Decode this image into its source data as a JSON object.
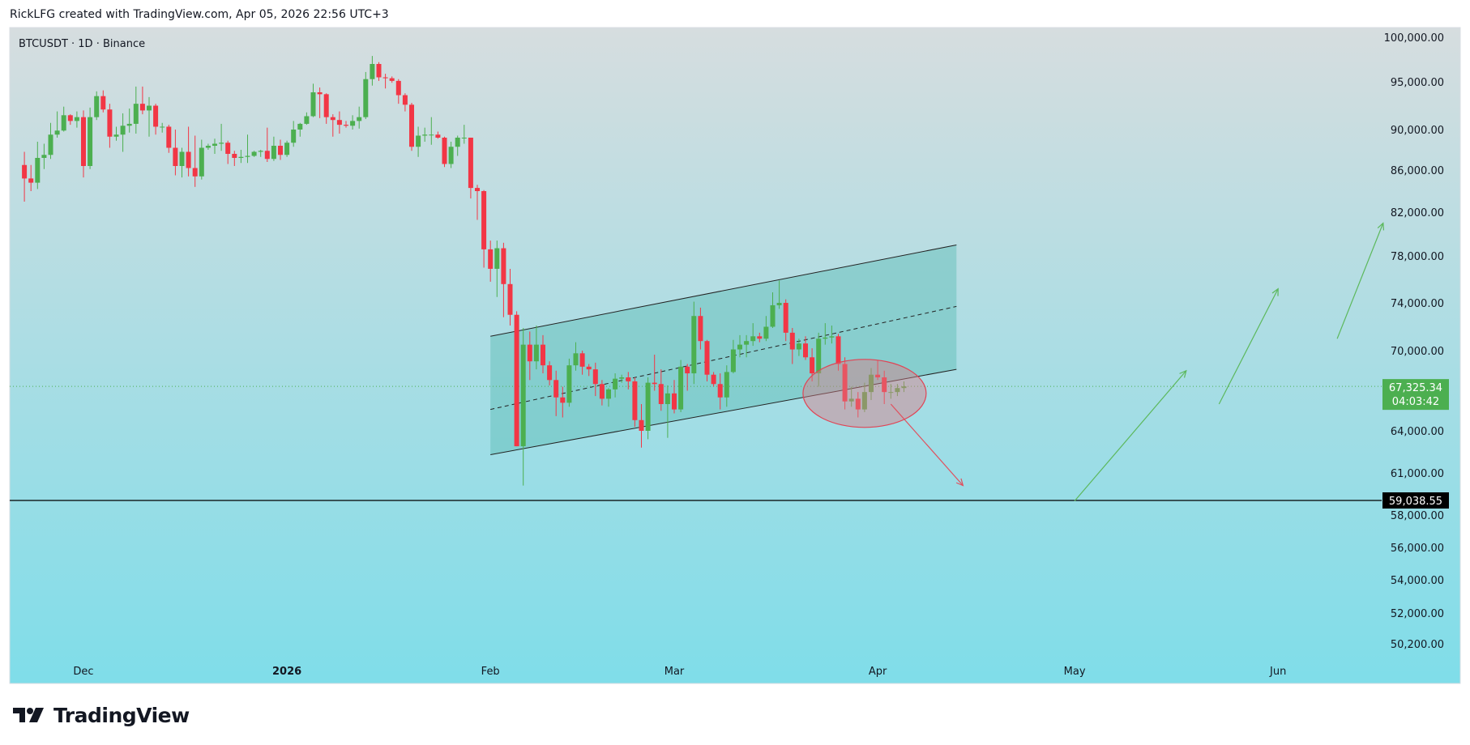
{
  "credit": "RickLFG created with TradingView.com, Apr 05, 2026 22:56 UTC+3",
  "brand": {
    "name": "TradingView"
  },
  "colors": {
    "bg_top": "#d6dddf",
    "bg_bottom": "#7fdde9",
    "up": "#4caf50",
    "down": "#f23645",
    "channel_fill": "#5bbdb4",
    "price_tag": "#4caf50",
    "level_tag": "#000000"
  },
  "chart_data": {
    "type": "candlestick",
    "title": "BTCUSDT · 1D · Binance",
    "symbol": "BTCUSDT",
    "interval": "1D",
    "exchange": "Binance",
    "y_ticks": [
      "100,000.00",
      "95,000.00",
      "90,000.00",
      "86,000.00",
      "82,000.00",
      "78,000.00",
      "74,000.00",
      "70,000.00",
      "64,000.00",
      "61,000.00",
      "58,000.00",
      "56,000.00",
      "54,000.00",
      "52,000.00",
      "50,200.00"
    ],
    "x_ticks": [
      {
        "label": "Dec",
        "date": "2025-12-01",
        "bold": false
      },
      {
        "label": "2026",
        "date": "2026-01-01",
        "bold": true
      },
      {
        "label": "Feb",
        "date": "2026-02-01",
        "bold": false
      },
      {
        "label": "Mar",
        "date": "2026-03-01",
        "bold": false
      },
      {
        "label": "Apr",
        "date": "2026-04-01",
        "bold": false
      },
      {
        "label": "May",
        "date": "2026-05-01",
        "bold": false
      },
      {
        "label": "Jun",
        "date": "2026-06-01",
        "bold": false
      }
    ],
    "last_price": {
      "value": "67,325.34",
      "countdown": "04:03:42"
    },
    "horizontal_level": {
      "value": "59,038.55"
    },
    "channel": {
      "upper": [
        {
          "date": "2026-02-01",
          "price": 71200
        },
        {
          "date": "2026-04-13",
          "price": 79000
        }
      ],
      "middle": [
        {
          "date": "2026-02-01",
          "price": 65600
        },
        {
          "date": "2026-04-13",
          "price": 73700
        }
      ],
      "lower": [
        {
          "date": "2026-02-01",
          "price": 62300
        },
        {
          "date": "2026-04-13",
          "price": 68600
        }
      ]
    },
    "ellipse": {
      "center_date": "2026-03-30",
      "center_price": 66800
    },
    "arrows": [
      {
        "color": "red",
        "from": {
          "date": "2026-04-03",
          "price": 66000
        },
        "to": {
          "date": "2026-04-14",
          "price": 60100
        }
      },
      {
        "color": "green",
        "from": {
          "date": "2026-05-01",
          "price": 59000
        },
        "to": {
          "date": "2026-05-18",
          "price": 68500
        }
      },
      {
        "color": "green",
        "from": {
          "date": "2026-05-23",
          "price": 66000
        },
        "to": {
          "date": "2026-06-01",
          "price": 75200
        }
      },
      {
        "color": "green",
        "from": {
          "date": "2026-06-10",
          "price": 71000
        },
        "to": {
          "date": "2026-06-17",
          "price": 81000
        }
      }
    ],
    "candles": [
      {
        "d": "2025-11-22",
        "o": 86500,
        "h": 87800,
        "l": 83000,
        "c": 85200
      },
      {
        "d": "2025-11-23",
        "o": 85200,
        "h": 86500,
        "l": 84000,
        "c": 84800
      },
      {
        "d": "2025-11-24",
        "o": 84800,
        "h": 88800,
        "l": 84200,
        "c": 87200
      },
      {
        "d": "2025-11-25",
        "o": 87200,
        "h": 88600,
        "l": 86100,
        "c": 87500
      },
      {
        "d": "2025-11-26",
        "o": 87500,
        "h": 90700,
        "l": 87100,
        "c": 89500
      },
      {
        "d": "2025-11-27",
        "o": 89500,
        "h": 91900,
        "l": 89200,
        "c": 89900
      },
      {
        "d": "2025-11-28",
        "o": 89900,
        "h": 92400,
        "l": 89800,
        "c": 91500
      },
      {
        "d": "2025-11-29",
        "o": 91500,
        "h": 91600,
        "l": 90500,
        "c": 90900
      },
      {
        "d": "2025-11-30",
        "o": 90900,
        "h": 91900,
        "l": 90200,
        "c": 91300
      },
      {
        "d": "2025-12-01",
        "o": 91300,
        "h": 92000,
        "l": 85300,
        "c": 86400
      },
      {
        "d": "2025-12-02",
        "o": 86400,
        "h": 92300,
        "l": 86100,
        "c": 91300
      },
      {
        "d": "2025-12-03",
        "o": 91300,
        "h": 94000,
        "l": 91000,
        "c": 93500
      },
      {
        "d": "2025-12-04",
        "o": 93500,
        "h": 94100,
        "l": 91800,
        "c": 92100
      },
      {
        "d": "2025-12-05",
        "o": 92100,
        "h": 92700,
        "l": 88200,
        "c": 89300
      },
      {
        "d": "2025-12-06",
        "o": 89300,
        "h": 90300,
        "l": 88900,
        "c": 89500
      },
      {
        "d": "2025-12-07",
        "o": 89500,
        "h": 91700,
        "l": 87800,
        "c": 90400
      },
      {
        "d": "2025-12-08",
        "o": 90400,
        "h": 92200,
        "l": 89700,
        "c": 90600
      },
      {
        "d": "2025-12-09",
        "o": 90600,
        "h": 94500,
        "l": 89600,
        "c": 92700
      },
      {
        "d": "2025-12-10",
        "o": 92700,
        "h": 94500,
        "l": 91600,
        "c": 92000
      },
      {
        "d": "2025-12-11",
        "o": 92000,
        "h": 93400,
        "l": 89300,
        "c": 92500
      },
      {
        "d": "2025-12-12",
        "o": 92500,
        "h": 92700,
        "l": 89500,
        "c": 90300
      },
      {
        "d": "2025-12-13",
        "o": 90300,
        "h": 90700,
        "l": 89700,
        "c": 90300
      },
      {
        "d": "2025-12-14",
        "o": 90300,
        "h": 90500,
        "l": 87700,
        "c": 88200
      },
      {
        "d": "2025-12-15",
        "o": 88200,
        "h": 90000,
        "l": 85500,
        "c": 86400
      },
      {
        "d": "2025-12-16",
        "o": 86400,
        "h": 88200,
        "l": 85300,
        "c": 87800
      },
      {
        "d": "2025-12-17",
        "o": 87800,
        "h": 90300,
        "l": 85400,
        "c": 86200
      },
      {
        "d": "2025-12-18",
        "o": 86200,
        "h": 89400,
        "l": 84400,
        "c": 85400
      },
      {
        "d": "2025-12-19",
        "o": 85400,
        "h": 89000,
        "l": 85100,
        "c": 88200
      },
      {
        "d": "2025-12-20",
        "o": 88200,
        "h": 88600,
        "l": 88000,
        "c": 88400
      },
      {
        "d": "2025-12-21",
        "o": 88400,
        "h": 89100,
        "l": 87600,
        "c": 88600
      },
      {
        "d": "2025-12-22",
        "o": 88600,
        "h": 90600,
        "l": 87900,
        "c": 88700
      },
      {
        "d": "2025-12-23",
        "o": 88700,
        "h": 88900,
        "l": 86600,
        "c": 87600
      },
      {
        "d": "2025-12-24",
        "o": 87600,
        "h": 87900,
        "l": 86400,
        "c": 87200
      },
      {
        "d": "2025-12-25",
        "o": 87200,
        "h": 88000,
        "l": 86700,
        "c": 87300
      },
      {
        "d": "2025-12-26",
        "o": 87300,
        "h": 89500,
        "l": 86700,
        "c": 87400
      },
      {
        "d": "2025-12-27",
        "o": 87400,
        "h": 87900,
        "l": 87300,
        "c": 87800
      },
      {
        "d": "2025-12-28",
        "o": 87800,
        "h": 88000,
        "l": 87300,
        "c": 87900
      },
      {
        "d": "2025-12-29",
        "o": 87900,
        "h": 90200,
        "l": 86800,
        "c": 87100
      },
      {
        "d": "2025-12-30",
        "o": 87100,
        "h": 89300,
        "l": 86900,
        "c": 88400
      },
      {
        "d": "2025-12-31",
        "o": 88400,
        "h": 89000,
        "l": 87000,
        "c": 87500
      },
      {
        "d": "2026-01-01",
        "o": 87500,
        "h": 88900,
        "l": 87300,
        "c": 88700
      },
      {
        "d": "2026-01-02",
        "o": 88700,
        "h": 90900,
        "l": 88300,
        "c": 90000
      },
      {
        "d": "2026-01-03",
        "o": 90000,
        "h": 90700,
        "l": 89300,
        "c": 90600
      },
      {
        "d": "2026-01-04",
        "o": 90600,
        "h": 91800,
        "l": 90500,
        "c": 91400
      },
      {
        "d": "2026-01-05",
        "o": 91400,
        "h": 94800,
        "l": 91300,
        "c": 93900
      },
      {
        "d": "2026-01-06",
        "o": 93900,
        "h": 94400,
        "l": 91200,
        "c": 93700
      },
      {
        "d": "2026-01-07",
        "o": 93700,
        "h": 93800,
        "l": 90600,
        "c": 91300
      },
      {
        "d": "2026-01-08",
        "o": 91300,
        "h": 91600,
        "l": 89300,
        "c": 91000
      },
      {
        "d": "2026-01-09",
        "o": 91000,
        "h": 91900,
        "l": 89600,
        "c": 90500
      },
      {
        "d": "2026-01-10",
        "o": 90500,
        "h": 90900,
        "l": 90200,
        "c": 90400
      },
      {
        "d": "2026-01-11",
        "o": 90400,
        "h": 91500,
        "l": 90000,
        "c": 90900
      },
      {
        "d": "2026-01-12",
        "o": 90900,
        "h": 92400,
        "l": 90100,
        "c": 91300
      },
      {
        "d": "2026-01-13",
        "o": 91300,
        "h": 96100,
        "l": 91100,
        "c": 95300
      },
      {
        "d": "2026-01-14",
        "o": 95300,
        "h": 97900,
        "l": 94600,
        "c": 97000
      },
      {
        "d": "2026-01-15",
        "o": 97000,
        "h": 97200,
        "l": 95100,
        "c": 95500
      },
      {
        "d": "2026-01-16",
        "o": 95500,
        "h": 95900,
        "l": 94300,
        "c": 95400
      },
      {
        "d": "2026-01-17",
        "o": 95400,
        "h": 95600,
        "l": 94900,
        "c": 95100
      },
      {
        "d": "2026-01-18",
        "o": 95100,
        "h": 95300,
        "l": 92700,
        "c": 93600
      },
      {
        "d": "2026-01-19",
        "o": 93600,
        "h": 93800,
        "l": 91900,
        "c": 92600
      },
      {
        "d": "2026-01-20",
        "o": 92600,
        "h": 92800,
        "l": 87900,
        "c": 88300
      },
      {
        "d": "2026-01-21",
        "o": 88300,
        "h": 90300,
        "l": 87300,
        "c": 89400
      },
      {
        "d": "2026-01-22",
        "o": 89400,
        "h": 90200,
        "l": 88800,
        "c": 89500
      },
      {
        "d": "2026-01-23",
        "o": 89500,
        "h": 91300,
        "l": 88500,
        "c": 89500
      },
      {
        "d": "2026-01-24",
        "o": 89500,
        "h": 89800,
        "l": 89100,
        "c": 89200
      },
      {
        "d": "2026-01-25",
        "o": 89200,
        "h": 89300,
        "l": 86300,
        "c": 86600
      },
      {
        "d": "2026-01-26",
        "o": 86600,
        "h": 88800,
        "l": 86200,
        "c": 88300
      },
      {
        "d": "2026-01-27",
        "o": 88300,
        "h": 89400,
        "l": 87400,
        "c": 89200
      },
      {
        "d": "2026-01-28",
        "o": 89200,
        "h": 90500,
        "l": 88600,
        "c": 89200
      },
      {
        "d": "2026-01-29",
        "o": 89200,
        "h": 89200,
        "l": 83300,
        "c": 84300
      },
      {
        "d": "2026-01-30",
        "o": 84300,
        "h": 84600,
        "l": 81300,
        "c": 84000
      },
      {
        "d": "2026-01-31",
        "o": 84000,
        "h": 84100,
        "l": 77000,
        "c": 78600
      },
      {
        "d": "2026-02-01",
        "o": 78600,
        "h": 79400,
        "l": 75800,
        "c": 76900
      },
      {
        "d": "2026-02-02",
        "o": 76900,
        "h": 79400,
        "l": 74500,
        "c": 78700
      },
      {
        "d": "2026-02-03",
        "o": 78700,
        "h": 79200,
        "l": 72800,
        "c": 75600
      },
      {
        "d": "2026-02-04",
        "o": 75600,
        "h": 76900,
        "l": 72100,
        "c": 73000
      },
      {
        "d": "2026-02-05",
        "o": 73000,
        "h": 73300,
        "l": 62900,
        "c": 62900
      },
      {
        "d": "2026-02-06",
        "o": 62900,
        "h": 71900,
        "l": 60100,
        "c": 70500
      },
      {
        "d": "2026-02-07",
        "o": 70500,
        "h": 71600,
        "l": 67800,
        "c": 69200
      },
      {
        "d": "2026-02-08",
        "o": 69200,
        "h": 72100,
        "l": 68600,
        "c": 70500
      },
      {
        "d": "2026-02-09",
        "o": 70500,
        "h": 71300,
        "l": 68300,
        "c": 68900
      },
      {
        "d": "2026-02-10",
        "o": 68900,
        "h": 69200,
        "l": 67400,
        "c": 67800
      },
      {
        "d": "2026-02-11",
        "o": 67800,
        "h": 68500,
        "l": 65100,
        "c": 66500
      },
      {
        "d": "2026-02-12",
        "o": 66500,
        "h": 67300,
        "l": 65000,
        "c": 66100
      },
      {
        "d": "2026-02-13",
        "o": 66100,
        "h": 69400,
        "l": 65800,
        "c": 68900
      },
      {
        "d": "2026-02-14",
        "o": 68900,
        "h": 70700,
        "l": 68500,
        "c": 69800
      },
      {
        "d": "2026-02-15",
        "o": 69800,
        "h": 70000,
        "l": 68200,
        "c": 68800
      },
      {
        "d": "2026-02-16",
        "o": 68800,
        "h": 69000,
        "l": 68100,
        "c": 68600
      },
      {
        "d": "2026-02-17",
        "o": 68600,
        "h": 69100,
        "l": 66600,
        "c": 67500
      },
      {
        "d": "2026-02-18",
        "o": 67500,
        "h": 67800,
        "l": 65900,
        "c": 66400
      },
      {
        "d": "2026-02-19",
        "o": 66400,
        "h": 67200,
        "l": 65800,
        "c": 67100
      },
      {
        "d": "2026-02-20",
        "o": 67100,
        "h": 68300,
        "l": 66500,
        "c": 67900
      },
      {
        "d": "2026-02-21",
        "o": 67900,
        "h": 68200,
        "l": 67600,
        "c": 68000
      },
      {
        "d": "2026-02-22",
        "o": 68000,
        "h": 68400,
        "l": 67100,
        "c": 67700
      },
      {
        "d": "2026-02-23",
        "o": 67700,
        "h": 68000,
        "l": 64300,
        "c": 64800
      },
      {
        "d": "2026-02-24",
        "o": 64800,
        "h": 66000,
        "l": 62800,
        "c": 64000
      },
      {
        "d": "2026-02-25",
        "o": 64000,
        "h": 68000,
        "l": 63400,
        "c": 67600
      },
      {
        "d": "2026-02-26",
        "o": 67600,
        "h": 69700,
        "l": 67000,
        "c": 67500
      },
      {
        "d": "2026-02-27",
        "o": 67500,
        "h": 68600,
        "l": 65500,
        "c": 66000
      },
      {
        "d": "2026-02-28",
        "o": 66000,
        "h": 67400,
        "l": 63500,
        "c": 66800
      },
      {
        "d": "2026-03-01",
        "o": 66800,
        "h": 67800,
        "l": 65300,
        "c": 65600
      },
      {
        "d": "2026-03-02",
        "o": 65600,
        "h": 69300,
        "l": 65400,
        "c": 68800
      },
      {
        "d": "2026-03-03",
        "o": 68800,
        "h": 69000,
        "l": 67000,
        "c": 68300
      },
      {
        "d": "2026-03-04",
        "o": 68300,
        "h": 74100,
        "l": 67500,
        "c": 72900
      },
      {
        "d": "2026-03-05",
        "o": 72900,
        "h": 73600,
        "l": 70100,
        "c": 70800
      },
      {
        "d": "2026-03-06",
        "o": 70800,
        "h": 70900,
        "l": 67700,
        "c": 68200
      },
      {
        "d": "2026-03-07",
        "o": 68200,
        "h": 68400,
        "l": 67300,
        "c": 67500
      },
      {
        "d": "2026-03-08",
        "o": 67500,
        "h": 68300,
        "l": 65600,
        "c": 66500
      },
      {
        "d": "2026-03-09",
        "o": 66500,
        "h": 68900,
        "l": 65800,
        "c": 68400
      },
      {
        "d": "2026-03-10",
        "o": 68400,
        "h": 70900,
        "l": 68300,
        "c": 70100
      },
      {
        "d": "2026-03-11",
        "o": 70100,
        "h": 71300,
        "l": 69500,
        "c": 70500
      },
      {
        "d": "2026-03-12",
        "o": 70500,
        "h": 71300,
        "l": 69500,
        "c": 70800
      },
      {
        "d": "2026-03-13",
        "o": 70800,
        "h": 72300,
        "l": 70400,
        "c": 71200
      },
      {
        "d": "2026-03-14",
        "o": 71200,
        "h": 71500,
        "l": 70700,
        "c": 71000
      },
      {
        "d": "2026-03-15",
        "o": 71000,
        "h": 72900,
        "l": 70800,
        "c": 72000
      },
      {
        "d": "2026-03-16",
        "o": 72000,
        "h": 74900,
        "l": 71900,
        "c": 73800
      },
      {
        "d": "2026-03-17",
        "o": 73800,
        "h": 75900,
        "l": 73500,
        "c": 74000
      },
      {
        "d": "2026-03-18",
        "o": 74000,
        "h": 74300,
        "l": 70800,
        "c": 71500
      },
      {
        "d": "2026-03-19",
        "o": 71500,
        "h": 71900,
        "l": 69000,
        "c": 70100
      },
      {
        "d": "2026-03-20",
        "o": 70100,
        "h": 71000,
        "l": 69600,
        "c": 70600
      },
      {
        "d": "2026-03-21",
        "o": 70600,
        "h": 71200,
        "l": 69300,
        "c": 69500
      },
      {
        "d": "2026-03-22",
        "o": 69500,
        "h": 70200,
        "l": 67700,
        "c": 68300
      },
      {
        "d": "2026-03-23",
        "o": 68300,
        "h": 71500,
        "l": 67300,
        "c": 71000
      },
      {
        "d": "2026-03-24",
        "o": 71000,
        "h": 72300,
        "l": 70500,
        "c": 71100
      },
      {
        "d": "2026-03-25",
        "o": 71100,
        "h": 72100,
        "l": 70600,
        "c": 71200
      },
      {
        "d": "2026-03-26",
        "o": 71200,
        "h": 71400,
        "l": 68500,
        "c": 69000
      },
      {
        "d": "2026-03-27",
        "o": 69000,
        "h": 69500,
        "l": 65600,
        "c": 66200
      },
      {
        "d": "2026-03-28",
        "o": 66200,
        "h": 67300,
        "l": 65800,
        "c": 66400
      },
      {
        "d": "2026-03-29",
        "o": 66400,
        "h": 66900,
        "l": 65000,
        "c": 65600
      },
      {
        "d": "2026-03-30",
        "o": 65600,
        "h": 67600,
        "l": 65400,
        "c": 66900
      },
      {
        "d": "2026-03-31",
        "o": 66900,
        "h": 68700,
        "l": 66300,
        "c": 68200
      },
      {
        "d": "2026-04-01",
        "o": 68200,
        "h": 69300,
        "l": 67800,
        "c": 68000
      },
      {
        "d": "2026-04-02",
        "o": 68000,
        "h": 68500,
        "l": 66000,
        "c": 66900
      },
      {
        "d": "2026-04-03",
        "o": 66900,
        "h": 67500,
        "l": 66400,
        "c": 66900
      },
      {
        "d": "2026-04-04",
        "o": 66900,
        "h": 67500,
        "l": 66600,
        "c": 67200
      },
      {
        "d": "2026-04-05",
        "o": 67200,
        "h": 67700,
        "l": 66900,
        "c": 67325
      }
    ]
  }
}
